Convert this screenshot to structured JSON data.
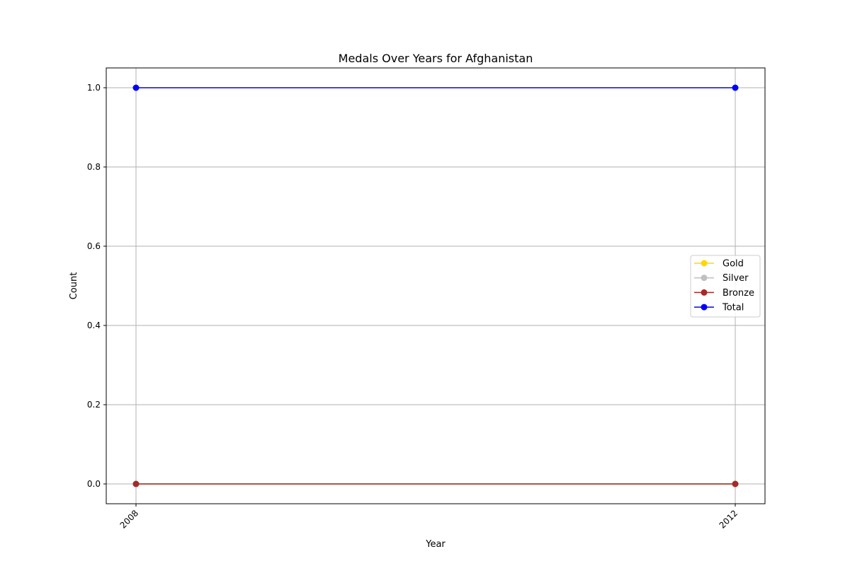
{
  "chart_data": {
    "type": "line",
    "title": "Medals Over Years for Afghanistan",
    "xlabel": "Year",
    "ylabel": "Count",
    "x": [
      "2008",
      "2012"
    ],
    "ylim": [
      -0.05,
      1.05
    ],
    "yticks": [
      "0.0",
      "0.2",
      "0.4",
      "0.6",
      "0.8",
      "1.0"
    ],
    "grid": true,
    "legend_position": "center-right",
    "series": [
      {
        "name": "Gold",
        "values": [
          0,
          0
        ],
        "color": "#FFD700"
      },
      {
        "name": "Silver",
        "values": [
          0,
          0
        ],
        "color": "#C0C0C0"
      },
      {
        "name": "Bronze",
        "values": [
          0,
          0
        ],
        "color": "#A52A2A"
      },
      {
        "name": "Total",
        "values": [
          1,
          1
        ],
        "color": "#0000FF"
      }
    ]
  }
}
